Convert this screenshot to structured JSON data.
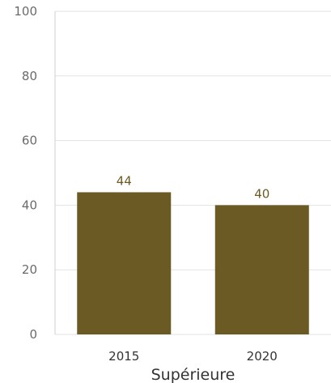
{
  "chart_data": {
    "type": "bar",
    "categories": [
      "2015",
      "2020"
    ],
    "values": [
      44,
      40
    ],
    "group_label": "Supérieure",
    "title": "",
    "xlabel": "",
    "ylabel": "",
    "ylim": [
      0,
      100
    ],
    "yticks": [
      0,
      20,
      40,
      60,
      80,
      100
    ],
    "grid": true,
    "legend": "none",
    "colors": {
      "bar": "#6b5a24",
      "data_label": "#6b5a24",
      "grid": "#e2e2e2"
    }
  }
}
